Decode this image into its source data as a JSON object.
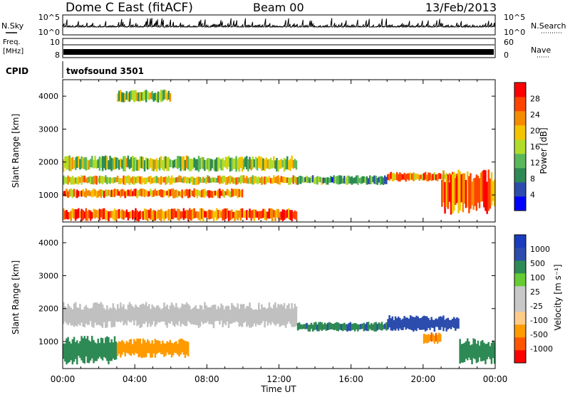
{
  "header": {
    "station": "Dome C East (fitACF)",
    "beam": "Beam 00",
    "date": "13/Feb/2013"
  },
  "top_panels": {
    "nsky_label": "N.Sky",
    "nsky_ticks": [
      "10^5",
      "10^0"
    ],
    "nsearch_label": "N.Search",
    "nsearch_ticks": [
      "10^5",
      "10^0"
    ],
    "freq_label_1": "Freq.",
    "freq_label_2": "[MHz]",
    "freq_ticks": [
      "10",
      "8"
    ],
    "nave_label": "Nave",
    "nave_ticks": [
      "60",
      "0"
    ],
    "cpid_label": "CPID",
    "cpid_value": "twofsound 3501"
  },
  "colors": {
    "power": [
      "#0000ff",
      "#2c4dad",
      "#2e8a54",
      "#5ab85a",
      "#b0dc2c",
      "#f5c400",
      "#f58c00",
      "#ff4400",
      "#ff0000"
    ],
    "velocity": [
      "#ff0000",
      "#ff5500",
      "#ff9a00",
      "#ffcc88",
      "#c8c8c8",
      "#c8c8c8",
      "#66cc33",
      "#2e8a54",
      "#2c4dad",
      "#1a3cbf"
    ],
    "ground_scatter": "#c0c0c0"
  },
  "chart_data": [
    {
      "type": "heatmap",
      "name": "power",
      "ylabel": "Slant Range [km]",
      "xlabel": "Time UT",
      "xlim": [
        0,
        24
      ],
      "ylim": [
        180,
        4500
      ],
      "x_ticks": [
        "00:00",
        "04:00",
        "08:00",
        "12:00",
        "16:00",
        "20:00",
        "00:00"
      ],
      "y_ticks": [
        "1000",
        "2000",
        "3000",
        "4000"
      ],
      "colorbar": {
        "label": "Power [dB]",
        "ticks": [
          "4",
          "8",
          "12",
          "16",
          "20",
          "24",
          "28"
        ],
        "range": [
          0,
          30
        ]
      },
      "bands": [
        {
          "t": [
            0,
            13
          ],
          "r": [
            200,
            600
          ],
          "level": 24
        },
        {
          "t": [
            0,
            10
          ],
          "r": [
            900,
            1200
          ],
          "level": 22
        },
        {
          "t": [
            0,
            13
          ],
          "r": [
            1300,
            1600
          ],
          "level": 18
        },
        {
          "t": [
            0,
            13
          ],
          "r": [
            1700,
            2200
          ],
          "level": 14
        },
        {
          "t": [
            13,
            18
          ],
          "r": [
            1300,
            1600
          ],
          "level": 10
        },
        {
          "t": [
            18,
            22
          ],
          "r": [
            1400,
            1700
          ],
          "level": 22
        },
        {
          "t": [
            21,
            24
          ],
          "r": [
            400,
            1800
          ],
          "level": 24
        },
        {
          "t": [
            3,
            6
          ],
          "r": [
            3800,
            4200
          ],
          "level": 14
        }
      ]
    },
    {
      "type": "heatmap",
      "name": "velocity",
      "ylabel": "Slant Range [km]",
      "xlabel": "Time UT",
      "xlim": [
        0,
        24
      ],
      "ylim": [
        180,
        4500
      ],
      "x_ticks": [
        "00:00",
        "04:00",
        "08:00",
        "12:00",
        "16:00",
        "20:00",
        "00:00"
      ],
      "y_ticks": [
        "1000",
        "2000",
        "3000",
        "4000"
      ],
      "colorbar": {
        "label": "Velocity [m s⁻¹]",
        "ticks": [
          "1000",
          "500",
          "100",
          "25",
          "-25",
          "-100",
          "-500",
          "-1000"
        ]
      },
      "bands": [
        {
          "t": [
            0,
            3
          ],
          "r": [
            300,
            1200
          ],
          "v": 300
        },
        {
          "t": [
            3,
            7
          ],
          "r": [
            500,
            1100
          ],
          "v": -300
        },
        {
          "t": [
            0,
            13
          ],
          "r": [
            1400,
            2200
          ],
          "v": 0
        },
        {
          "t": [
            13,
            18
          ],
          "r": [
            1300,
            1600
          ],
          "v": 400
        },
        {
          "t": [
            18,
            22
          ],
          "r": [
            1300,
            1800
          ],
          "v": 700
        },
        {
          "t": [
            20,
            21
          ],
          "r": [
            900,
            1300
          ],
          "v": -400
        },
        {
          "t": [
            22,
            24
          ],
          "r": [
            300,
            1100
          ],
          "v": 300
        }
      ]
    }
  ],
  "axis": {
    "time_label": "Time UT",
    "x_ticks": [
      "00:00",
      "04:00",
      "08:00",
      "12:00",
      "16:00",
      "20:00",
      "00:00"
    ]
  }
}
